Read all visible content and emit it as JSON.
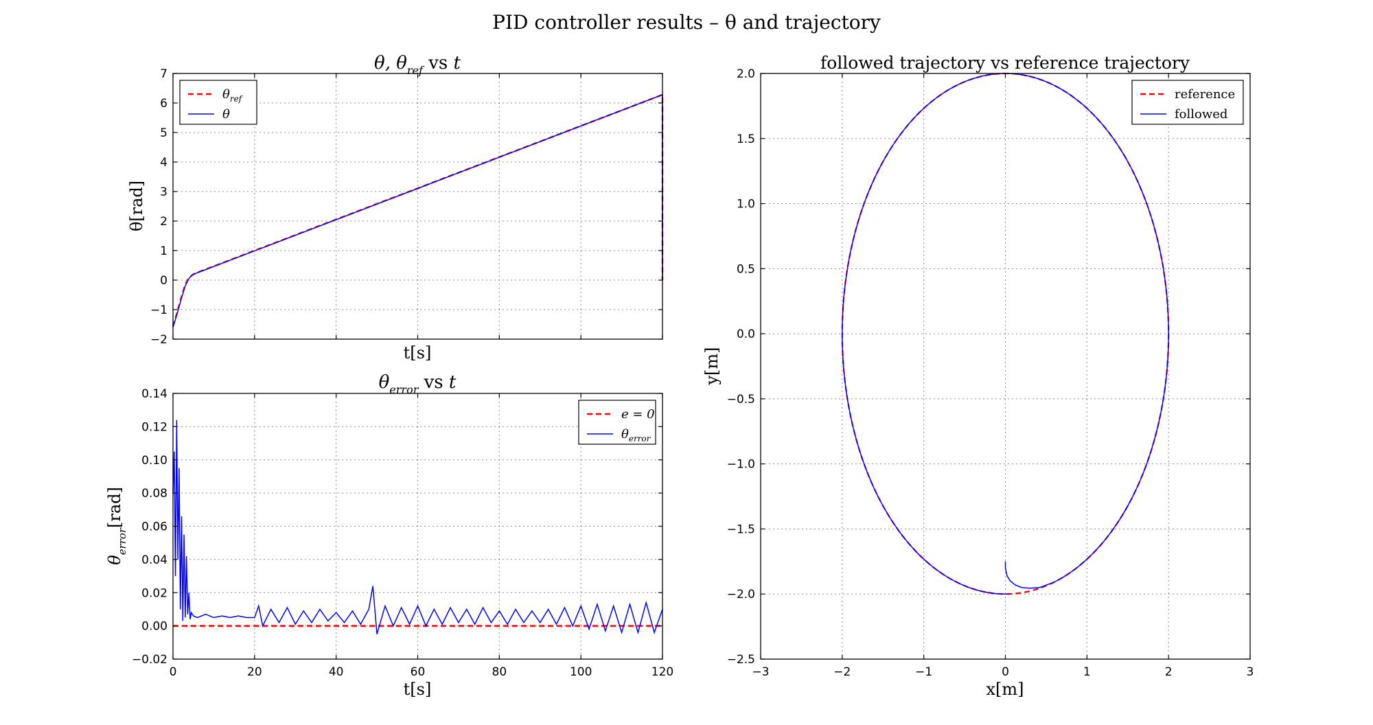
{
  "figure": {
    "suptitle": "PID controller results –  θ and trajectory"
  },
  "chart_data": [
    {
      "id": "theta",
      "type": "line",
      "title_parts": [
        "θ,  θ",
        "ref",
        " vs ",
        "t"
      ],
      "xlabel": "t[s]",
      "ylabel": "θ[rad]",
      "xlim": [
        0,
        120
      ],
      "ylim": [
        -2,
        7
      ],
      "xticks": [
        0,
        20,
        40,
        60,
        80,
        100,
        120
      ],
      "xtick_labels_visible": false,
      "yticks": [
        -2,
        -1,
        0,
        1,
        2,
        3,
        4,
        5,
        6,
        7
      ],
      "ytick_labels": [
        "−2",
        "−1",
        "0",
        "1",
        "2",
        "3",
        "4",
        "5",
        "6",
        "7"
      ],
      "grid": true,
      "legend": {
        "location": "top-left",
        "entries": [
          {
            "label": "θ",
            "sub": "ref",
            "style": "dashed",
            "color": "#ff0000"
          },
          {
            "label": "θ",
            "sub": "",
            "style": "solid",
            "color": "#0000ff"
          }
        ]
      },
      "series": [
        {
          "name": "θ_ref",
          "color": "#ff0000",
          "style": "dashed",
          "x": [
            0,
            1,
            2,
            3,
            4,
            5,
            6,
            120,
            120
          ],
          "y": [
            -1.57,
            -1.1,
            -0.6,
            -0.15,
            0.1,
            0.2,
            0.26,
            6.28,
            0
          ]
        },
        {
          "name": "θ",
          "color": "#0000ff",
          "style": "solid",
          "x": [
            0,
            1,
            2,
            3,
            4,
            5,
            6,
            120,
            120
          ],
          "y": [
            -1.6,
            -1.15,
            -0.65,
            -0.2,
            0.08,
            0.19,
            0.25,
            6.28,
            0
          ]
        }
      ]
    },
    {
      "id": "theta_error",
      "type": "line",
      "title_parts": [
        "θ",
        "error",
        " vs ",
        "t"
      ],
      "xlabel": "t[s]",
      "ylabel": "θ_error[rad]",
      "ylabel_parts": [
        "θ",
        "error",
        "[rad]"
      ],
      "xlim": [
        0,
        120
      ],
      "ylim": [
        -0.02,
        0.14
      ],
      "xticks": [
        0,
        20,
        40,
        60,
        80,
        100,
        120
      ],
      "xtick_labels": [
        "0",
        "20",
        "40",
        "60",
        "80",
        "100",
        "120"
      ],
      "yticks": [
        -0.02,
        0.0,
        0.02,
        0.04,
        0.06,
        0.08,
        0.1,
        0.12,
        0.14
      ],
      "ytick_labels": [
        "−0.02",
        "0.00",
        "0.02",
        "0.04",
        "0.06",
        "0.08",
        "0.10",
        "0.12",
        "0.14"
      ],
      "grid": true,
      "legend": {
        "location": "top-right",
        "entries": [
          {
            "label": "e = 0",
            "sub": "",
            "style": "dashed",
            "color": "#ff0000"
          },
          {
            "label": "θ",
            "sub": "error",
            "style": "solid",
            "color": "#0000ff"
          }
        ]
      },
      "series": [
        {
          "name": "e=0",
          "color": "#ff0000",
          "style": "dashed",
          "x": [
            0,
            120
          ],
          "y": [
            0,
            0
          ]
        },
        {
          "name": "θ_error",
          "color": "#0000ff",
          "style": "solid",
          "x": [
            0,
            0.3,
            0.6,
            0.9,
            1.2,
            1.5,
            1.8,
            2.1,
            2.4,
            2.7,
            3.0,
            3.3,
            3.6,
            3.9,
            4.2,
            4.5,
            5,
            6,
            8,
            10,
            12,
            14,
            16,
            18,
            20,
            21,
            22,
            24,
            26,
            28,
            30,
            32,
            34,
            36,
            38,
            40,
            42,
            44,
            46,
            48,
            49,
            50,
            52,
            54,
            56,
            58,
            60,
            62,
            64,
            66,
            68,
            70,
            72,
            74,
            76,
            78,
            80,
            82,
            84,
            86,
            88,
            90,
            92,
            94,
            96,
            98,
            100,
            102,
            104,
            106,
            108,
            110,
            112,
            114,
            116,
            118,
            120
          ],
          "y": [
            0.08,
            0.105,
            0.03,
            0.124,
            0.04,
            0.095,
            0.01,
            0.066,
            0.003,
            0.055,
            0.005,
            0.042,
            0.007,
            0.02,
            0.004,
            0.008,
            0.006,
            0.005,
            0.007,
            0.005,
            0.006,
            0.005,
            0.006,
            0.005,
            0.005,
            0.012,
            0.0,
            0.01,
            0.002,
            0.011,
            0.001,
            0.009,
            0.002,
            0.01,
            0.003,
            0.008,
            0.002,
            0.009,
            0.001,
            0.01,
            0.024,
            -0.005,
            0.012,
            0.0,
            0.011,
            0.001,
            0.012,
            0.0,
            0.01,
            0.001,
            0.011,
            0.002,
            0.01,
            0.001,
            0.011,
            0.002,
            0.009,
            0.001,
            0.01,
            0.002,
            0.009,
            0.002,
            0.01,
            0.001,
            0.011,
            0.0,
            0.012,
            -0.002,
            0.013,
            -0.003,
            0.012,
            -0.004,
            0.013,
            -0.004,
            0.014,
            -0.004,
            0.01
          ]
        }
      ]
    },
    {
      "id": "trajectory",
      "type": "line",
      "title": "followed trajectory vs reference trajectory",
      "xlabel": "x[m]",
      "ylabel": "y[m]",
      "xlim": [
        -3,
        3
      ],
      "ylim": [
        -2.5,
        2.0
      ],
      "xticks": [
        -3,
        -2,
        -1,
        0,
        1,
        2,
        3
      ],
      "xtick_labels": [
        "−3",
        "−2",
        "−1",
        "0",
        "1",
        "2",
        "3"
      ],
      "yticks": [
        -2.5,
        -2.0,
        -1.5,
        -1.0,
        -0.5,
        0.0,
        0.5,
        1.0,
        1.5,
        2.0
      ],
      "ytick_labels": [
        "−2.5",
        "−2.0",
        "−1.5",
        "−1.0",
        "−0.5",
        "0.0",
        "0.5",
        "1.0",
        "1.5",
        "2.0"
      ],
      "grid": true,
      "legend": {
        "location": "top-right",
        "entries": [
          {
            "label": "reference",
            "sub": "",
            "style": "dashed",
            "color": "#ff0000"
          },
          {
            "label": "followed",
            "sub": "",
            "style": "solid",
            "color": "#0000ff"
          }
        ]
      },
      "series": [
        {
          "name": "reference",
          "color": "#ff0000",
          "style": "dashed",
          "shape": "circle",
          "radius": 2.0,
          "center": [
            0,
            0
          ]
        },
        {
          "name": "followed",
          "color": "#0000ff",
          "style": "solid",
          "x": [
            0.0,
            0.0,
            0.02,
            0.06,
            0.12,
            0.2,
            0.3,
            0.42,
            0.55
          ],
          "y": [
            -1.75,
            -1.8,
            -1.86,
            -1.9,
            -1.93,
            -1.95,
            -1.955,
            -1.95,
            -1.92
          ],
          "then_follows_reference": true
        }
      ]
    }
  ]
}
